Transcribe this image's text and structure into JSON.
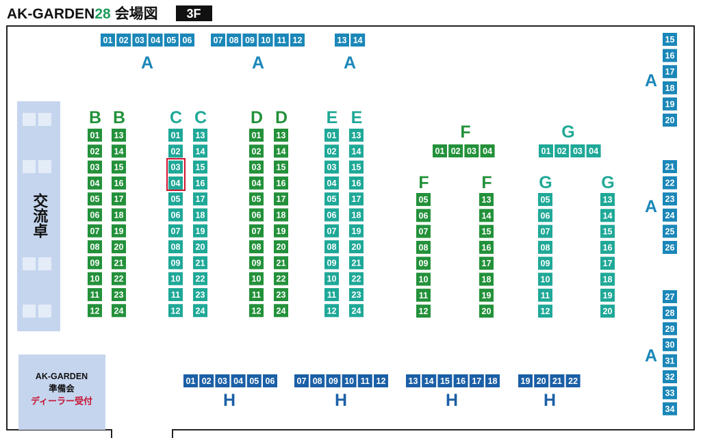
{
  "header": {
    "title": "AK-GARDEN",
    "number": "28",
    "subtitle": "会場図",
    "floor": "3F"
  },
  "blocks": [
    {
      "label": "A",
      "booths": [
        "01",
        "02",
        "03",
        "04",
        "05",
        "06"
      ]
    },
    {
      "label": "A",
      "booths": [
        "07",
        "08",
        "09",
        "10",
        "11",
        "12"
      ]
    },
    {
      "label": "A",
      "booths": [
        "13",
        "14"
      ]
    },
    {
      "label": "A",
      "booths": [
        "15",
        "16",
        "17",
        "18",
        "19",
        "20"
      ]
    },
    {
      "label": "A",
      "booths": [
        "21",
        "22",
        "23",
        "24",
        "25",
        "26"
      ]
    },
    {
      "label": "A",
      "booths": [
        "27",
        "28",
        "29",
        "30",
        "31",
        "32",
        "33",
        "34"
      ]
    },
    {
      "label": "B",
      "booths": [
        "01",
        "02",
        "03",
        "04",
        "05",
        "06",
        "07",
        "08",
        "09",
        "10",
        "11",
        "12"
      ]
    },
    {
      "label": "B",
      "booths": [
        "13",
        "14",
        "15",
        "16",
        "17",
        "18",
        "19",
        "20",
        "21",
        "22",
        "23",
        "24"
      ]
    },
    {
      "label": "C",
      "booths": [
        "01",
        "02",
        "03",
        "04",
        "05",
        "06",
        "07",
        "08",
        "09",
        "10",
        "11",
        "12"
      ]
    },
    {
      "label": "C",
      "booths": [
        "13",
        "14",
        "15",
        "16",
        "17",
        "18",
        "19",
        "20",
        "21",
        "22",
        "23",
        "24"
      ]
    },
    {
      "label": "D",
      "booths": [
        "01",
        "02",
        "03",
        "04",
        "05",
        "06",
        "07",
        "08",
        "09",
        "10",
        "11",
        "12"
      ]
    },
    {
      "label": "D",
      "booths": [
        "13",
        "14",
        "15",
        "16",
        "17",
        "18",
        "19",
        "20",
        "21",
        "22",
        "23",
        "24"
      ]
    },
    {
      "label": "E",
      "booths": [
        "01",
        "02",
        "03",
        "04",
        "05",
        "06",
        "07",
        "08",
        "09",
        "10",
        "11",
        "12"
      ]
    },
    {
      "label": "E",
      "booths": [
        "13",
        "14",
        "15",
        "16",
        "17",
        "18",
        "19",
        "20",
        "21",
        "22",
        "23",
        "24"
      ]
    },
    {
      "label": "F",
      "booths": [
        "01",
        "02",
        "03",
        "04"
      ]
    },
    {
      "label": "G",
      "booths": [
        "01",
        "02",
        "03",
        "04"
      ]
    },
    {
      "label": "F",
      "booths": [
        "05",
        "06",
        "07",
        "08",
        "09",
        "10",
        "11",
        "12"
      ]
    },
    {
      "label": "F",
      "booths": [
        "13",
        "14",
        "15",
        "16",
        "17",
        "18",
        "19",
        "20"
      ]
    },
    {
      "label": "G",
      "booths": [
        "05",
        "06",
        "07",
        "08",
        "09",
        "10",
        "11",
        "12"
      ]
    },
    {
      "label": "G",
      "booths": [
        "13",
        "14",
        "15",
        "16",
        "17",
        "18",
        "19",
        "20"
      ]
    },
    {
      "label": "H",
      "booths": [
        "01",
        "02",
        "03",
        "04",
        "05",
        "06"
      ]
    },
    {
      "label": "H",
      "booths": [
        "07",
        "08",
        "09",
        "10",
        "11",
        "12"
      ]
    },
    {
      "label": "H",
      "booths": [
        "13",
        "14",
        "15",
        "16",
        "17",
        "18"
      ]
    },
    {
      "label": "H",
      "booths": [
        "19",
        "20",
        "21",
        "22"
      ]
    }
  ],
  "areas": {
    "exchange": "交流卓",
    "reception": [
      "AK-GARDEN",
      "準備会",
      "ディーラー受付"
    ]
  }
}
